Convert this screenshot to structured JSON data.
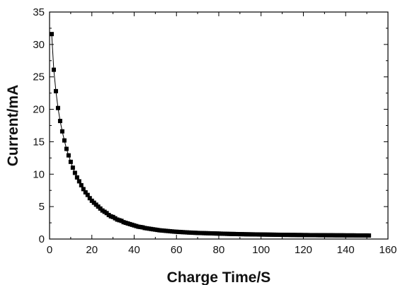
{
  "chart_data": {
    "type": "scatter",
    "title": "",
    "xlabel": "Charge Time/S",
    "ylabel": "Current/mA",
    "xlim": [
      0,
      160
    ],
    "ylim": [
      0,
      35
    ],
    "xticks": [
      0,
      20,
      40,
      60,
      80,
      100,
      120,
      140,
      160
    ],
    "yticks": [
      0,
      5,
      10,
      15,
      20,
      25,
      30,
      35
    ],
    "grid": false,
    "legend": "none",
    "marker": "square",
    "line": true,
    "colors": {
      "series": "#000000",
      "axes": "#000000",
      "background": "#ffffff"
    },
    "series": [
      {
        "x": [
          1,
          2,
          3,
          4,
          5,
          6,
          7,
          8,
          9,
          10,
          11,
          12,
          13,
          14,
          15,
          16,
          17,
          18,
          19,
          20,
          21,
          22,
          23,
          24,
          25,
          26,
          27,
          28,
          29,
          30,
          31,
          32,
          33,
          34,
          35,
          36,
          37,
          38,
          39,
          40,
          41,
          42,
          43,
          44,
          45,
          46,
          47,
          48,
          49,
          50,
          51,
          52,
          53,
          54,
          55,
          56,
          57,
          58,
          59,
          60,
          61,
          62,
          63,
          64,
          65,
          66,
          67,
          68,
          69,
          70,
          71,
          72,
          73,
          74,
          75,
          76,
          77,
          78,
          79,
          80,
          81,
          82,
          83,
          84,
          85,
          86,
          87,
          88,
          89,
          90,
          91,
          92,
          93,
          94,
          95,
          96,
          97,
          98,
          99,
          100,
          101,
          102,
          103,
          104,
          105,
          106,
          107,
          108,
          109,
          110,
          111,
          112,
          113,
          114,
          115,
          116,
          117,
          118,
          119,
          120,
          121,
          122,
          123,
          124,
          125,
          126,
          127,
          128,
          129,
          130,
          131,
          132,
          133,
          134,
          135,
          136,
          137,
          138,
          139,
          140,
          141,
          142,
          143,
          144,
          145,
          146,
          147,
          148,
          149,
          150,
          151
        ],
        "y": [
          31.6,
          26.1,
          22.8,
          20.2,
          18.2,
          16.6,
          15.2,
          13.9,
          12.9,
          11.9,
          11.0,
          10.2,
          9.5,
          8.9,
          8.3,
          7.7,
          7.2,
          6.8,
          6.3,
          5.9,
          5.6,
          5.3,
          5.0,
          4.7,
          4.4,
          4.2,
          4.0,
          3.7,
          3.5,
          3.4,
          3.2,
          3.0,
          2.9,
          2.8,
          2.6,
          2.5,
          2.4,
          2.3,
          2.2,
          2.1,
          2.0,
          1.9,
          1.85,
          1.8,
          1.7,
          1.65,
          1.6,
          1.55,
          1.5,
          1.45,
          1.4,
          1.35,
          1.32,
          1.29,
          1.26,
          1.23,
          1.2,
          1.17,
          1.14,
          1.12,
          1.1,
          1.08,
          1.06,
          1.04,
          1.02,
          1.0,
          0.99,
          0.97,
          0.96,
          0.94,
          0.93,
          0.92,
          0.91,
          0.9,
          0.89,
          0.88,
          0.87,
          0.86,
          0.85,
          0.84,
          0.83,
          0.82,
          0.81,
          0.8,
          0.79,
          0.78,
          0.78,
          0.77,
          0.76,
          0.75,
          0.75,
          0.74,
          0.73,
          0.73,
          0.72,
          0.72,
          0.71,
          0.71,
          0.7,
          0.7,
          0.69,
          0.69,
          0.68,
          0.68,
          0.67,
          0.67,
          0.66,
          0.66,
          0.65,
          0.65,
          0.64,
          0.64,
          0.64,
          0.63,
          0.63,
          0.63,
          0.62,
          0.62,
          0.62,
          0.61,
          0.61,
          0.61,
          0.6,
          0.6,
          0.6,
          0.6,
          0.59,
          0.59,
          0.59,
          0.59,
          0.58,
          0.58,
          0.58,
          0.58,
          0.57,
          0.57,
          0.57,
          0.57,
          0.57,
          0.56,
          0.56,
          0.56,
          0.56,
          0.56,
          0.55,
          0.55,
          0.55,
          0.55,
          0.55,
          0.55,
          0.54
        ]
      }
    ]
  }
}
